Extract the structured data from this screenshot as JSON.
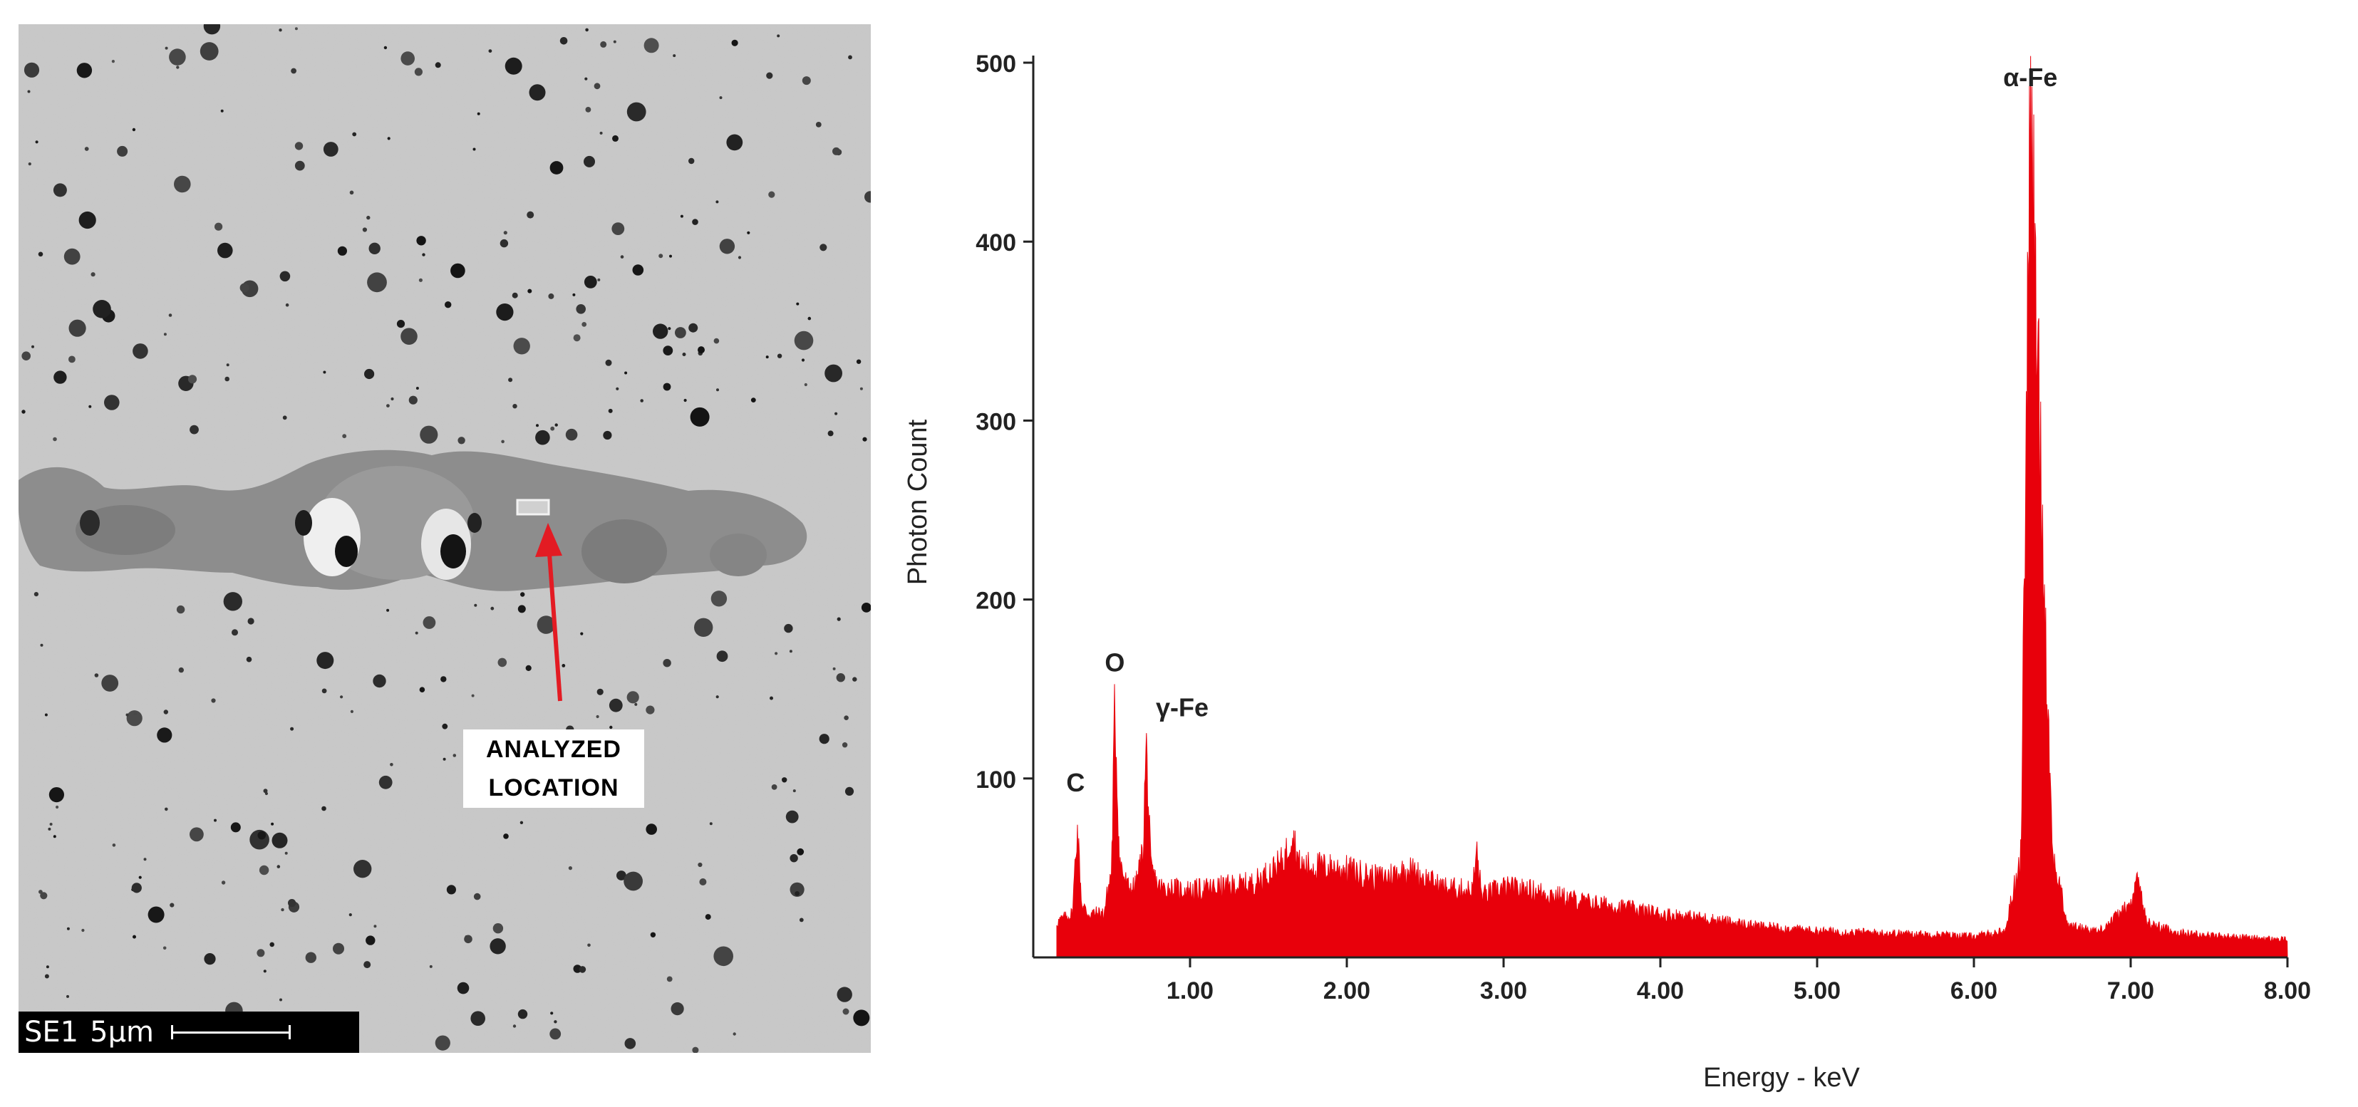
{
  "sem_image": {
    "label_line1": "ANALYZED",
    "label_line2": "LOCATION",
    "scale_detector": "SE1",
    "scale_length": "5µm",
    "arrow_color": "#e31b23"
  },
  "chart_data": {
    "type": "area",
    "title": "",
    "xlabel": "Energy - keV",
    "ylabel": "Photon Count",
    "xlim": [
      0,
      8
    ],
    "ylim": [
      0,
      500
    ],
    "xticks": [
      "1.00",
      "2.00",
      "3.00",
      "4.00",
      "5.00",
      "6.00",
      "7.00",
      "8.00"
    ],
    "yticks": [
      "100",
      "200",
      "300",
      "400",
      "500"
    ],
    "series_color": "#e8000b",
    "series": [
      {
        "x": [
          0.15,
          0.25,
          0.28,
          0.31,
          0.35,
          0.45,
          0.5,
          0.52,
          0.55,
          0.6,
          0.65,
          0.7,
          0.72,
          0.75,
          0.8,
          1.0,
          1.2,
          1.4,
          1.5,
          1.6,
          1.65,
          1.7,
          1.8,
          2.0,
          2.2,
          2.4,
          2.6,
          2.8,
          2.83,
          2.86,
          3.0,
          3.2,
          3.5,
          3.8,
          4.0,
          4.3,
          4.6,
          5.0,
          5.4,
          5.8,
          6.0,
          6.2,
          6.3,
          6.36,
          6.42,
          6.5,
          6.6,
          6.8,
          7.0,
          7.05,
          7.1,
          7.3,
          7.6,
          8.0
        ],
        "y": [
          20,
          25,
          75,
          30,
          25,
          25,
          50,
          145,
          55,
          40,
          40,
          60,
          122,
          50,
          40,
          38,
          40,
          42,
          48,
          55,
          72,
          52,
          52,
          50,
          45,
          50,
          40,
          38,
          60,
          35,
          40,
          38,
          32,
          28,
          25,
          22,
          18,
          15,
          14,
          13,
          12,
          15,
          60,
          475,
          300,
          60,
          18,
          15,
          30,
          45,
          20,
          14,
          12,
          10
        ]
      }
    ],
    "annotations": [
      {
        "text": "C",
        "x": 0.27,
        "y": 88
      },
      {
        "text": "O",
        "x": 0.52,
        "y": 155
      },
      {
        "text": "γ-Fe",
        "x": 0.95,
        "y": 130
      },
      {
        "text": "α-Fe",
        "x": 6.36,
        "y": 482
      }
    ]
  }
}
